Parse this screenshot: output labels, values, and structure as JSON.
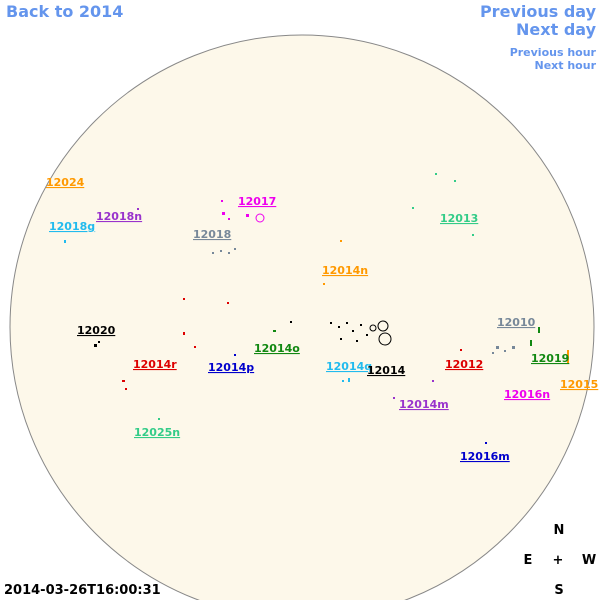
{
  "header": {
    "back": "Back to 2014",
    "previous_day": "Previous day",
    "next_day": "Next day",
    "previous_hour": "Previous hour",
    "next_hour": "Next hour"
  },
  "regions": [
    {
      "label": "12024",
      "color": "#ff9900"
    },
    {
      "label": "12018g",
      "color": "#22bbee"
    },
    {
      "label": "12018n",
      "color": "#9933cc"
    },
    {
      "label": "12017",
      "color": "#ee00ee"
    },
    {
      "label": "12018",
      "color": "#778899"
    },
    {
      "label": "12013",
      "color": "#33cc88"
    },
    {
      "label": "12014n",
      "color": "#ff9900"
    },
    {
      "label": "12020",
      "color": "#000000"
    },
    {
      "label": "12014o",
      "color": "#118811"
    },
    {
      "label": "12010",
      "color": "#778899"
    },
    {
      "label": "12019",
      "color": "#118811"
    },
    {
      "label": "12014r",
      "color": "#dd0000"
    },
    {
      "label": "12014p",
      "color": "#0000cc"
    },
    {
      "label": "12014q",
      "color": "#22bbee"
    },
    {
      "label": "12014",
      "color": "#000000"
    },
    {
      "label": "12012",
      "color": "#dd0000"
    },
    {
      "label": "12016n",
      "color": "#ee00ee"
    },
    {
      "label": "12015",
      "color": "#ff9900"
    },
    {
      "label": "12014m",
      "color": "#9933cc"
    },
    {
      "label": "12025n",
      "color": "#33cc88"
    },
    {
      "label": "12016m",
      "color": "#0000cc"
    }
  ],
  "compass": {
    "north": "N",
    "east": "E",
    "center": "+",
    "west": "W",
    "south": "S"
  },
  "timestamp": "2014-03-26T16:00:31"
}
